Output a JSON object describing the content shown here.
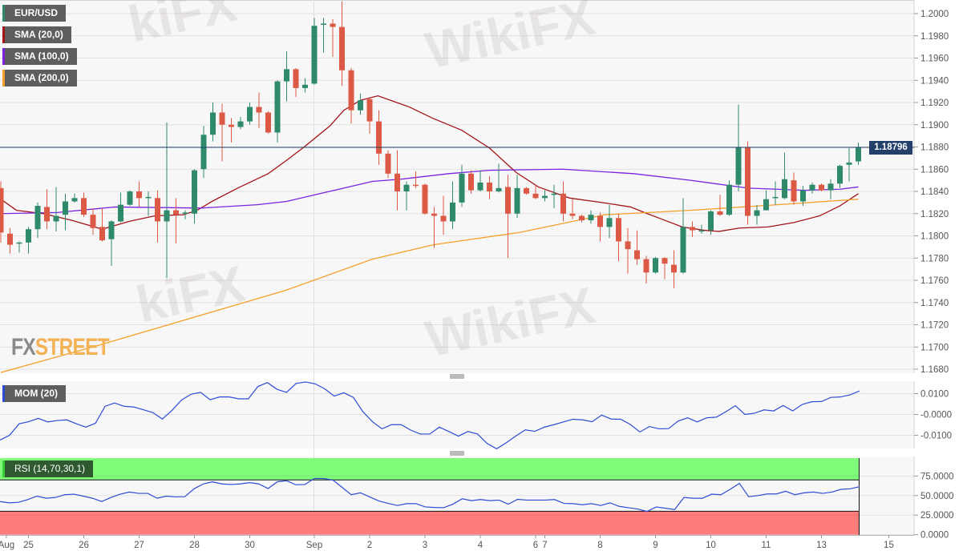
{
  "colors": {
    "up": "#2f8a6c",
    "down": "#dc5a45",
    "sma20": "#a3141a",
    "sma100": "#7a22e0",
    "sma200": "#f5a02a",
    "indicator": "#2f4bd4",
    "overbought": "#80fb7a",
    "oversold": "#ff7c7c",
    "price_tag": "#23406a"
  },
  "legend": [
    {
      "label": "EUR/USD",
      "color": "#2f8a6c"
    },
    {
      "label": "SMA (20,0)",
      "color": "#a3141a"
    },
    {
      "label": "SMA (100,0)",
      "color": "#7a22e0"
    },
    {
      "label": "SMA (200,0)",
      "color": "#f5a02a"
    }
  ],
  "mom_label": "MOM (20)",
  "rsi_label": "RSI (14,70,30,1)",
  "logo": {
    "fx": "FX",
    "street": "STREET"
  },
  "watermark": "WikiFX",
  "last_price": "1.18796",
  "chart_data": [
    {
      "type": "candlestick",
      "symbol": "EUR/USD",
      "ylim": [
        1.168,
        1.201
      ],
      "yticks": [
        "1.2000",
        "1.1980",
        "1.1960",
        "1.1940",
        "1.1920",
        "1.1900",
        "1.1880",
        "1.1860",
        "1.1840",
        "1.1820",
        "1.1800",
        "1.1780",
        "1.1760",
        "1.1740",
        "1.1720",
        "1.1700",
        "1.1680"
      ],
      "grid": true,
      "x_labels": [
        {
          "label": "Aug",
          "candle": 0.6
        },
        {
          "label": "25",
          "candle": 3
        },
        {
          "label": "26",
          "candle": 9
        },
        {
          "label": "27",
          "candle": 15
        },
        {
          "label": "28",
          "candle": 21
        },
        {
          "label": "30",
          "candle": 27
        },
        {
          "label": "Sep",
          "candle": 34
        },
        {
          "label": "2",
          "candle": 40
        },
        {
          "label": "3",
          "candle": 46
        },
        {
          "label": "4",
          "candle": 52
        },
        {
          "label": "6",
          "candle": 58
        },
        {
          "label": "7",
          "candle": 59
        },
        {
          "label": "8",
          "candle": 65
        },
        {
          "label": "9",
          "candle": 71
        },
        {
          "label": "10",
          "candle": 77
        },
        {
          "label": "11",
          "candle": 83
        },
        {
          "label": "13",
          "candle": 89
        },
        {
          "label": "15",
          "candle": 96.3
        }
      ],
      "ohlc": [
        [
          1.1843,
          1.1849,
          1.1794,
          1.1803
        ],
        [
          1.1802,
          1.1807,
          1.1784,
          1.1792
        ],
        [
          1.1793,
          1.1795,
          1.1785,
          1.1794
        ],
        [
          1.1794,
          1.1808,
          1.1784,
          1.1806
        ],
        [
          1.1806,
          1.183,
          1.1798,
          1.1827
        ],
        [
          1.1826,
          1.1842,
          1.1806,
          1.1813
        ],
        [
          1.1813,
          1.1844,
          1.1804,
          1.1818
        ],
        [
          1.1819,
          1.1838,
          1.1805,
          1.1831
        ],
        [
          1.1831,
          1.1838,
          1.183,
          1.1834
        ],
        [
          1.1834,
          1.1839,
          1.1817,
          1.1819
        ],
        [
          1.1819,
          1.1825,
          1.1801,
          1.1807
        ],
        [
          1.1808,
          1.1825,
          1.1795,
          1.1796
        ],
        [
          1.1797,
          1.1814,
          1.1773,
          1.1813
        ],
        [
          1.1813,
          1.1839,
          1.1812,
          1.1828
        ],
        [
          1.1828,
          1.1841,
          1.1827,
          1.184
        ],
        [
          1.184,
          1.1849,
          1.1826,
          1.1834
        ],
        [
          1.1834,
          1.184,
          1.1818,
          1.1835
        ],
        [
          1.1834,
          1.1841,
          1.1794,
          1.1813
        ],
        [
          1.1813,
          1.1902,
          1.1762,
          1.1823
        ],
        [
          1.1823,
          1.1834,
          1.1793,
          1.1819
        ],
        [
          1.182,
          1.1823,
          1.1815,
          1.1821
        ],
        [
          1.182,
          1.186,
          1.1811,
          1.1859
        ],
        [
          1.186,
          1.1899,
          1.1852,
          1.1891
        ],
        [
          1.1891,
          1.192,
          1.1885,
          1.1911
        ],
        [
          1.1911,
          1.1919,
          1.1867,
          1.19
        ],
        [
          1.19,
          1.1906,
          1.1884,
          1.1898
        ],
        [
          1.1898,
          1.1907,
          1.1896,
          1.1903
        ],
        [
          1.1903,
          1.192,
          1.19,
          1.1916
        ],
        [
          1.1916,
          1.1929,
          1.1897,
          1.1911
        ],
        [
          1.1911,
          1.1912,
          1.1892,
          1.1893
        ],
        [
          1.1893,
          1.194,
          1.1884,
          1.1939
        ],
        [
          1.1939,
          1.1966,
          1.1921,
          1.195
        ],
        [
          1.195,
          1.1951,
          1.1925,
          1.1933
        ],
        [
          1.1933,
          1.1942,
          1.1929,
          1.1936
        ],
        [
          1.1937,
          1.1996,
          1.1936,
          1.1989
        ],
        [
          1.199,
          1.1996,
          1.1965,
          1.1991
        ],
        [
          1.1991,
          1.1995,
          1.1961,
          1.1988
        ],
        [
          1.1988,
          1.2011,
          1.1935,
          1.1949
        ],
        [
          1.1949,
          1.1951,
          1.1901,
          1.1913
        ],
        [
          1.1913,
          1.1928,
          1.1909,
          1.1922
        ],
        [
          1.1923,
          1.1924,
          1.1892,
          1.1903
        ],
        [
          1.1903,
          1.1913,
          1.1864,
          1.1874
        ],
        [
          1.1874,
          1.1877,
          1.1852,
          1.1856
        ],
        [
          1.1856,
          1.1877,
          1.1823,
          1.184
        ],
        [
          1.184,
          1.1849,
          1.1823,
          1.1846
        ],
        [
          1.1846,
          1.1858,
          1.1843,
          1.1845
        ],
        [
          1.1846,
          1.1847,
          1.1819,
          1.182
        ],
        [
          1.182,
          1.1826,
          1.1789,
          1.1818
        ],
        [
          1.1818,
          1.1836,
          1.1801,
          1.1813
        ],
        [
          1.1813,
          1.1849,
          1.1806,
          1.183
        ],
        [
          1.183,
          1.1864,
          1.1826,
          1.1856
        ],
        [
          1.1856,
          1.1859,
          1.1838,
          1.1841
        ],
        [
          1.1841,
          1.1859,
          1.184,
          1.1848
        ],
        [
          1.1848,
          1.1854,
          1.1833,
          1.184
        ],
        [
          1.184,
          1.1865,
          1.1839,
          1.1843
        ],
        [
          1.1844,
          1.1855,
          1.178,
          1.182
        ],
        [
          1.182,
          1.1855,
          1.1816,
          1.1843
        ],
        [
          1.1843,
          1.1844,
          1.1837,
          1.1838
        ],
        [
          1.1838,
          1.1846,
          1.1833,
          1.1834
        ],
        [
          1.1834,
          1.1841,
          1.1831,
          1.1836
        ],
        [
          1.1837,
          1.1846,
          1.1825,
          1.1838
        ],
        [
          1.1838,
          1.1849,
          1.1813,
          1.182
        ],
        [
          1.182,
          1.1833,
          1.1815,
          1.1818
        ],
        [
          1.1818,
          1.1819,
          1.1812,
          1.1814
        ],
        [
          1.1814,
          1.1823,
          1.1811,
          1.1819
        ],
        [
          1.1818,
          1.1821,
          1.1795,
          1.1808
        ],
        [
          1.1808,
          1.1828,
          1.1798,
          1.1816
        ],
        [
          1.1816,
          1.182,
          1.1777,
          1.1795
        ],
        [
          1.1795,
          1.1807,
          1.1766,
          1.1788
        ],
        [
          1.1787,
          1.1805,
          1.1774,
          1.1779
        ],
        [
          1.1779,
          1.1782,
          1.1757,
          1.1767
        ],
        [
          1.1767,
          1.1781,
          1.1766,
          1.178
        ],
        [
          1.178,
          1.1781,
          1.1761,
          1.1775
        ],
        [
          1.1774,
          1.1787,
          1.1753,
          1.1767
        ],
        [
          1.1767,
          1.1834,
          1.1766,
          1.1808
        ],
        [
          1.1808,
          1.1813,
          1.1799,
          1.1805
        ],
        [
          1.1805,
          1.181,
          1.1802,
          1.1805
        ],
        [
          1.1805,
          1.1823,
          1.1801,
          1.1822
        ],
        [
          1.1822,
          1.1837,
          1.1818,
          1.1819
        ],
        [
          1.1819,
          1.185,
          1.1818,
          1.1846
        ],
        [
          1.1846,
          1.1918,
          1.184,
          1.188
        ],
        [
          1.188,
          1.1885,
          1.181,
          1.1818
        ],
        [
          1.1818,
          1.1828,
          1.181,
          1.1823
        ],
        [
          1.1823,
          1.1841,
          1.1823,
          1.1833
        ],
        [
          1.1834,
          1.1849,
          1.1828,
          1.1835
        ],
        [
          1.1834,
          1.1875,
          1.1833,
          1.1851
        ],
        [
          1.185,
          1.1857,
          1.1828,
          1.1831
        ],
        [
          1.1831,
          1.1845,
          1.1827,
          1.1841
        ],
        [
          1.1841,
          1.1848,
          1.1838,
          1.1846
        ],
        [
          1.1846,
          1.1847,
          1.184,
          1.1841
        ],
        [
          1.1841,
          1.1851,
          1.1833,
          1.1847
        ],
        [
          1.1847,
          1.1864,
          1.1843,
          1.1863
        ],
        [
          1.1864,
          1.1879,
          1.1849,
          1.1866
        ],
        [
          1.1867,
          1.1884,
          1.1864,
          1.18796
        ]
      ],
      "sma": [
        {
          "name": "SMA (20,0)",
          "points": [
            [
              0,
              1.1833
            ],
            [
              1.7,
              1.1823
            ],
            [
              4.6,
              1.182
            ],
            [
              7.7,
              1.1814
            ],
            [
              11,
              1.1806
            ],
            [
              13.9,
              1.1813
            ],
            [
              16.7,
              1.1818
            ],
            [
              19.8,
              1.1819
            ],
            [
              21.3,
              1.1823
            ],
            [
              22.9,
              1.1831
            ],
            [
              25.7,
              1.1843
            ],
            [
              29,
              1.1856
            ],
            [
              31,
              1.1868
            ],
            [
              32.9,
              1.188
            ],
            [
              35.7,
              1.1899
            ],
            [
              37.2,
              1.1913
            ],
            [
              39,
              1.1922
            ],
            [
              40.9,
              1.1926
            ],
            [
              44.3,
              1.1916
            ],
            [
              46.8,
              1.1906
            ],
            [
              50,
              1.1895
            ],
            [
              53,
              1.1879
            ],
            [
              55.9,
              1.1857
            ],
            [
              58.3,
              1.1844
            ],
            [
              61.7,
              1.1834
            ],
            [
              65.2,
              1.183
            ],
            [
              68.3,
              1.1826
            ],
            [
              69.8,
              1.1821
            ],
            [
              71.7,
              1.1815
            ],
            [
              73.9,
              1.1808
            ],
            [
              76.3,
              1.1805
            ],
            [
              77.9,
              1.1804
            ],
            [
              80.1,
              1.1807
            ],
            [
              83.2,
              1.1808
            ],
            [
              86,
              1.1812
            ],
            [
              88.8,
              1.1818
            ],
            [
              91,
              1.1827
            ],
            [
              93,
              1.1838
            ]
          ]
        },
        {
          "name": "SMA (100,0)",
          "points": [
            [
              0,
              1.182
            ],
            [
              6.1,
              1.1821
            ],
            [
              12.4,
              1.1826
            ],
            [
              21.7,
              1.1825
            ],
            [
              27.8,
              1.1828
            ],
            [
              31,
              1.1831
            ],
            [
              34.1,
              1.1837
            ],
            [
              37.2,
              1.1843
            ],
            [
              40.3,
              1.1849
            ],
            [
              43.4,
              1.1851
            ],
            [
              48.6,
              1.1856
            ],
            [
              53,
              1.1859
            ],
            [
              60.9,
              1.186
            ],
            [
              68.6,
              1.1856
            ],
            [
              74.8,
              1.185
            ],
            [
              81,
              1.1843
            ],
            [
              87.2,
              1.1841
            ],
            [
              91,
              1.1842
            ],
            [
              93,
              1.1844
            ]
          ]
        },
        {
          "name": "SMA (200,0)",
          "points": [
            [
              0,
              1.1677
            ],
            [
              10.4,
              1.1701
            ],
            [
              30.9,
              1.1751
            ],
            [
              40.3,
              1.1779
            ],
            [
              46.9,
              1.1792
            ],
            [
              56.2,
              1.1803
            ],
            [
              65.5,
              1.1819
            ],
            [
              74.8,
              1.1823
            ],
            [
              84.2,
              1.1828
            ],
            [
              93,
              1.1833
            ]
          ]
        }
      ]
    },
    {
      "type": "line",
      "name": "MOM (20)",
      "yticks": [
        "0.0100",
        "-0.0000",
        "-0.0100"
      ],
      "ylim": [
        -0.018,
        0.017
      ],
      "values": [
        -0.0123,
        -0.01,
        -0.0045,
        -0.0035,
        -0.0019,
        -0.0036,
        -0.0029,
        -0.0026,
        -0.0045,
        -0.0061,
        -0.0042,
        0.0039,
        0.0055,
        0.0039,
        0.0036,
        0.0023,
        0.0009,
        -0.0022,
        0.0019,
        0.0069,
        0.0097,
        0.0106,
        0.0071,
        0.0084,
        0.0084,
        0.0075,
        0.0075,
        0.0134,
        0.0153,
        0.0121,
        0.0106,
        0.0149,
        0.0156,
        0.0147,
        0.0123,
        0.0088,
        0.0104,
        0.0082,
        0.0013,
        -0.0035,
        -0.0069,
        -0.0049,
        -0.0049,
        -0.0075,
        -0.0094,
        -0.0094,
        -0.0061,
        -0.0082,
        -0.0104,
        -0.0082,
        -0.0094,
        -0.0139,
        -0.0165,
        -0.0136,
        -0.0104,
        -0.0074,
        -0.0081,
        -0.0061,
        -0.0049,
        -0.0036,
        -0.0023,
        -0.0026,
        -0.0035,
        -0.0003,
        -0.0022,
        -0.0023,
        -0.0048,
        -0.0084,
        -0.0058,
        -0.0069,
        -0.0068,
        -0.0032,
        -0.0016,
        -0.0036,
        -0.0016,
        -0.0013,
        0.0013,
        0.0042,
        0.0,
        0.0006,
        0.0022,
        0.0017,
        0.0043,
        0.0017,
        0.0048,
        0.0061,
        0.0062,
        0.0082,
        0.0084,
        0.0094,
        0.0113
      ]
    },
    {
      "type": "line",
      "name": "RSI (14,70,30,1)",
      "yticks": [
        "75.0000",
        "50.0000",
        "25.0000",
        "0.0000"
      ],
      "ylim": [
        0,
        100
      ],
      "overbought": 70,
      "oversold": 30,
      "values": [
        42.4,
        40.7,
        41.4,
        44.9,
        49.3,
        46.6,
        47.6,
        51.1,
        51.8,
        49.3,
        46.6,
        42.4,
        47.6,
        51.8,
        54.5,
        52.8,
        52.8,
        46.6,
        49.3,
        48.3,
        48.6,
        58.7,
        64.9,
        67.6,
        64.9,
        64.2,
        64.9,
        66.6,
        64.9,
        59.0,
        67.6,
        69.0,
        63.8,
        64.2,
        71.8,
        71.8,
        70.0,
        60.7,
        51.1,
        53.5,
        48.3,
        43.1,
        40.0,
        37.3,
        39.7,
        39.7,
        35.5,
        34.8,
        34.5,
        39.0,
        45.9,
        43.5,
        44.9,
        43.5,
        44.2,
        39.0,
        45.2,
        44.2,
        44.2,
        44.2,
        44.9,
        40.0,
        39.7,
        38.3,
        39.7,
        37.3,
        40.7,
        36.2,
        34.5,
        32.8,
        29.7,
        35.5,
        33.8,
        32.1,
        47.6,
        46.6,
        46.6,
        51.8,
        51.1,
        58.0,
        65.6,
        48.6,
        50.0,
        52.1,
        52.1,
        55.5,
        51.1,
        53.5,
        54.5,
        52.8,
        54.5,
        58.0,
        58.7,
        61.4
      ]
    }
  ]
}
